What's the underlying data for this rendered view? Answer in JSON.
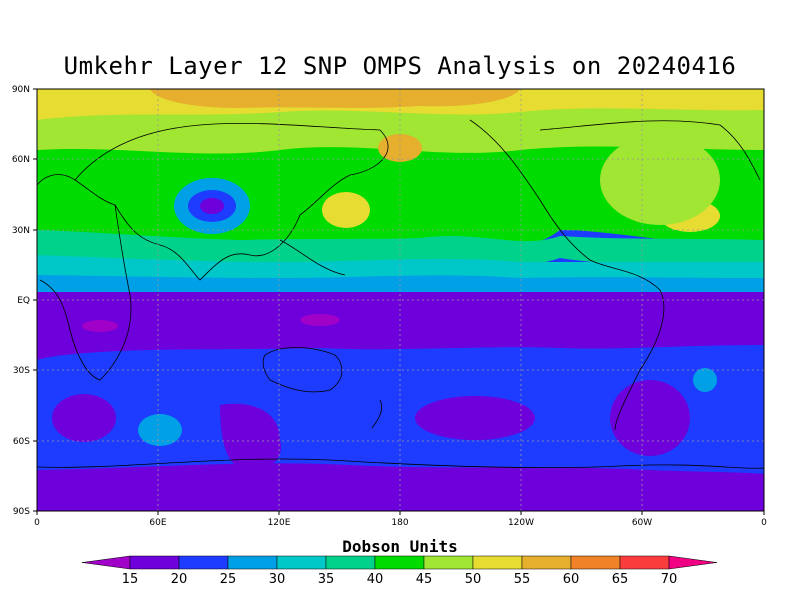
{
  "title": "Umkehr Layer 12 SNP OMPS Analysis on 20240416",
  "map": {
    "lat_ticks": [
      "90N",
      "60N",
      "30N",
      "EQ",
      "30S",
      "60S",
      "90S"
    ],
    "lon_ticks": [
      "0",
      "60E",
      "120E",
      "180",
      "120W",
      "60W",
      "0"
    ]
  },
  "colorbar": {
    "title": "Dobson Units",
    "levels": [
      "15",
      "20",
      "25",
      "30",
      "35",
      "40",
      "45",
      "50",
      "55",
      "60",
      "65",
      "70"
    ],
    "colors": [
      "#a000c8",
      "#6e00dc",
      "#1e3cff",
      "#00a0e6",
      "#00c8c8",
      "#00d28c",
      "#00dc00",
      "#a0e632",
      "#e6dc32",
      "#e6af2d",
      "#f08228",
      "#fa3c3c",
      "#f00082"
    ]
  }
}
